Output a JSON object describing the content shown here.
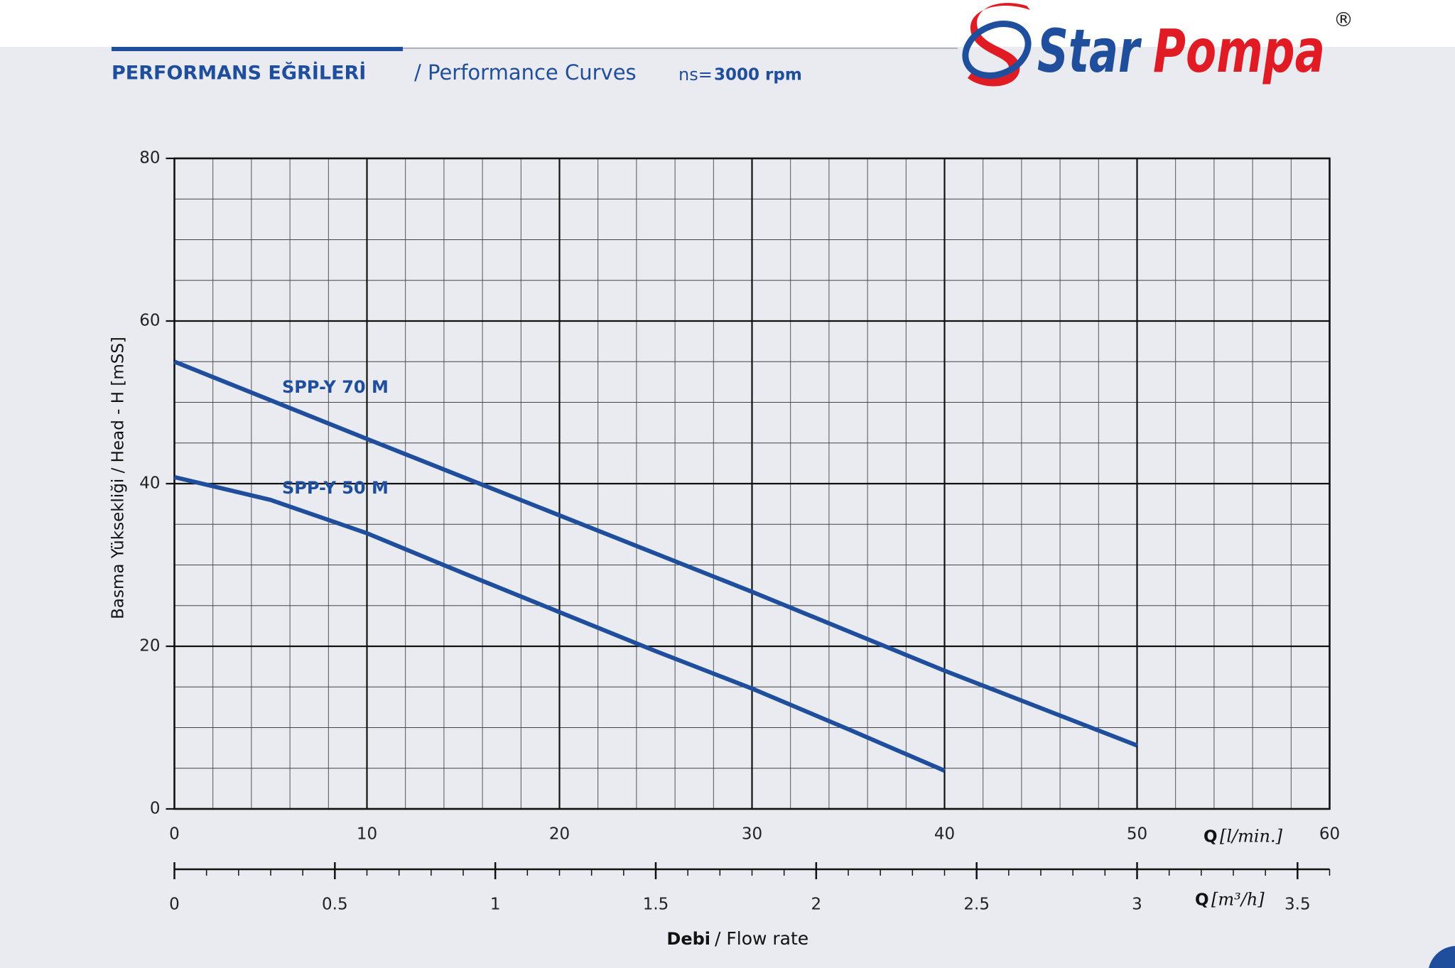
{
  "logo": {
    "name1": "Star",
    "name2": "Pompa",
    "mark": "®"
  },
  "chart_data": {
    "type": "line",
    "title": "PERFORMANS EĞRİLERİ",
    "subtitle": "/ Performance Curves",
    "speed_label": "ns=",
    "speed": "3000 rpm",
    "y_label": "Basma Yüksekliği / Head - H [mSS]",
    "x_symbol": "Q",
    "x_unit": "[l/min.]",
    "x2_symbol": "Q",
    "x2_unit": "[m³/h]",
    "x_title_bold": "Debi",
    "x_title": "/ Flow rate",
    "xlim": [
      0,
      60
    ],
    "xticks": [
      0,
      10,
      20,
      30,
      40,
      50,
      60
    ],
    "ylim": [
      0,
      80
    ],
    "yticks": [
      0,
      20,
      40,
      60,
      80
    ],
    "x2lim": [
      0,
      3.6
    ],
    "x2ticks": [
      0,
      0.5,
      1,
      1.5,
      2,
      2.5,
      3,
      3.5
    ],
    "grid": true,
    "minor_grid": {
      "x": 2,
      "y": 5
    },
    "x2_minor_step": 0.1,
    "series": [
      {
        "name": "SPP-Y 70 M",
        "color": "#1f4e9c",
        "x": [
          0,
          10,
          20,
          30,
          40,
          50
        ],
        "values": [
          55,
          45.5,
          36.1,
          26.7,
          17,
          7.8
        ]
      },
      {
        "name": "SPP-Y 50 M",
        "color": "#1f4e9c",
        "x": [
          0,
          5,
          10,
          15,
          20,
          25,
          30,
          35,
          40
        ],
        "values": [
          40.8,
          38,
          33.9,
          29,
          24.2,
          19.4,
          14.8,
          9.8,
          4.7
        ]
      }
    ]
  }
}
